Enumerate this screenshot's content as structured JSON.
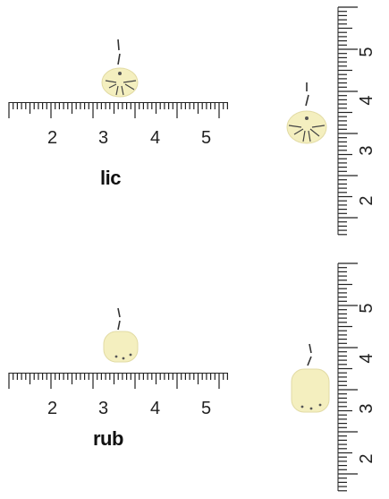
{
  "panels": [
    {
      "label": "lic",
      "horizontal_ruler": {
        "numbers": [
          "2",
          "3",
          "4",
          "5"
        ]
      },
      "vertical_ruler": {
        "numbers": [
          "5",
          "4",
          "3",
          "2"
        ]
      }
    },
    {
      "label": "rub",
      "horizontal_ruler": {
        "numbers": [
          "2",
          "3",
          "4",
          "5"
        ]
      },
      "vertical_ruler": {
        "numbers": [
          "5",
          "4",
          "3",
          "2"
        ]
      }
    }
  ],
  "colors": {
    "specimen_fill": "#f4efbf",
    "specimen_edge": "#c8c08a",
    "ink": "#222222"
  }
}
